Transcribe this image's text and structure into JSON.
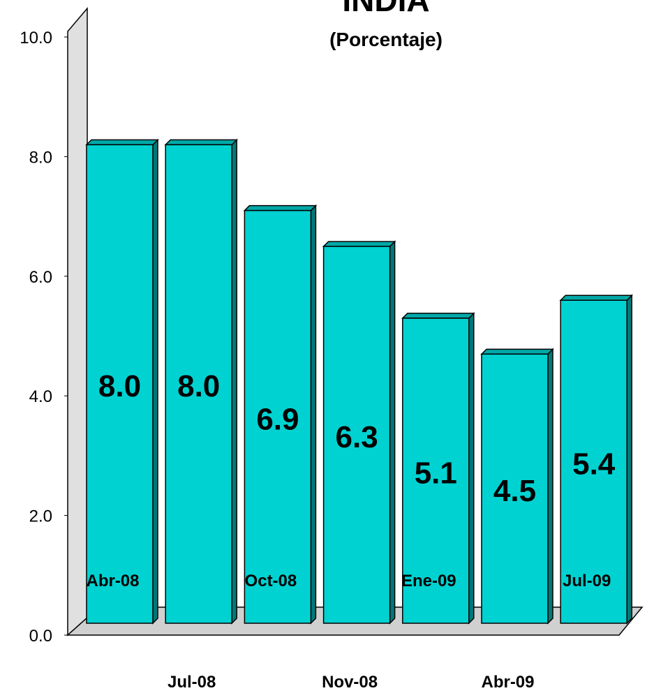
{
  "chart_data": {
    "type": "bar3d",
    "title": "INDIA",
    "subtitle": "(Porcentaje)",
    "categories": [
      "Abr-08",
      "Jul-08",
      "Oct-08",
      "Nov-08",
      "Ene-09",
      "Abr-09",
      "Jul-09"
    ],
    "values": [
      8.0,
      8.0,
      6.9,
      6.3,
      5.1,
      4.5,
      5.4
    ],
    "value_labels": [
      "8.0",
      "8.0",
      "6.9",
      "6.3",
      "5.1",
      "4.5",
      "5.4"
    ],
    "color": "#00d2d2",
    "ylim": [
      0,
      10
    ],
    "yticks": [
      {
        "value": 0,
        "label": "0.0"
      },
      {
        "value": 2,
        "label": "2.0"
      },
      {
        "value": 4,
        "label": "4.0"
      },
      {
        "value": 6,
        "label": "6.0"
      },
      {
        "value": 8,
        "label": "8.0"
      },
      {
        "value": 10,
        "label": "10.0"
      }
    ]
  }
}
